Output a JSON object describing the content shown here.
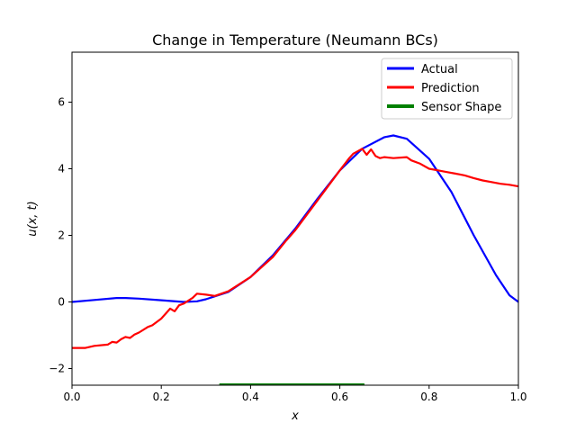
{
  "chart_data": {
    "type": "line",
    "title": "Change in Temperature (Neumann BCs)",
    "xlabel": "x",
    "ylabel": "u(x, t)",
    "xlim": [
      0.0,
      1.0
    ],
    "ylim": [
      -2.5,
      7.5
    ],
    "grid": false,
    "legend_position": "top-right",
    "x_ticks": [
      0.0,
      0.2,
      0.4,
      0.6,
      0.8,
      1.0
    ],
    "x_tick_labels": [
      "0.0",
      "0.2",
      "0.4",
      "0.6",
      "0.8",
      "1.0"
    ],
    "y_ticks": [
      -2,
      0,
      2,
      4,
      6
    ],
    "y_tick_labels": [
      "−2",
      "0",
      "2",
      "4",
      "6"
    ],
    "series": [
      {
        "name": "Actual",
        "color": "#0000ff",
        "x": [
          0.0,
          0.05,
          0.1,
          0.12,
          0.15,
          0.2,
          0.25,
          0.28,
          0.3,
          0.35,
          0.4,
          0.45,
          0.5,
          0.55,
          0.6,
          0.65,
          0.7,
          0.72,
          0.75,
          0.8,
          0.85,
          0.9,
          0.95,
          0.98,
          1.0
        ],
        "values": [
          0.0,
          0.06,
          0.12,
          0.12,
          0.1,
          0.05,
          0.0,
          0.02,
          0.08,
          0.3,
          0.75,
          1.4,
          2.2,
          3.1,
          3.95,
          4.6,
          4.95,
          5.0,
          4.9,
          4.3,
          3.3,
          2.0,
          0.8,
          0.2,
          0.0
        ]
      },
      {
        "name": "Prediction",
        "color": "#ff0000",
        "x": [
          0.0,
          0.03,
          0.05,
          0.08,
          0.09,
          0.1,
          0.11,
          0.12,
          0.13,
          0.14,
          0.15,
          0.17,
          0.18,
          0.2,
          0.22,
          0.23,
          0.24,
          0.25,
          0.27,
          0.28,
          0.3,
          0.32,
          0.35,
          0.4,
          0.45,
          0.48,
          0.5,
          0.55,
          0.6,
          0.62,
          0.63,
          0.65,
          0.66,
          0.67,
          0.68,
          0.69,
          0.7,
          0.72,
          0.75,
          0.76,
          0.78,
          0.8,
          0.82,
          0.84,
          0.86,
          0.88,
          0.9,
          0.92,
          0.94,
          0.96,
          0.98,
          1.0
        ],
        "values": [
          -1.38,
          -1.38,
          -1.32,
          -1.28,
          -1.2,
          -1.22,
          -1.12,
          -1.05,
          -1.08,
          -0.98,
          -0.92,
          -0.75,
          -0.7,
          -0.5,
          -0.2,
          -0.28,
          -0.1,
          -0.05,
          0.12,
          0.25,
          0.22,
          0.18,
          0.32,
          0.75,
          1.35,
          1.85,
          2.15,
          3.05,
          3.95,
          4.3,
          4.45,
          4.6,
          4.42,
          4.58,
          4.38,
          4.32,
          4.35,
          4.32,
          4.35,
          4.25,
          4.15,
          4.0,
          3.95,
          3.9,
          3.85,
          3.8,
          3.72,
          3.65,
          3.6,
          3.55,
          3.52,
          3.47
        ]
      },
      {
        "name": "Sensor Shape",
        "color": "#008000",
        "x": [
          0.33,
          0.655
        ],
        "values": [
          -2.5,
          -2.5
        ]
      }
    ]
  }
}
